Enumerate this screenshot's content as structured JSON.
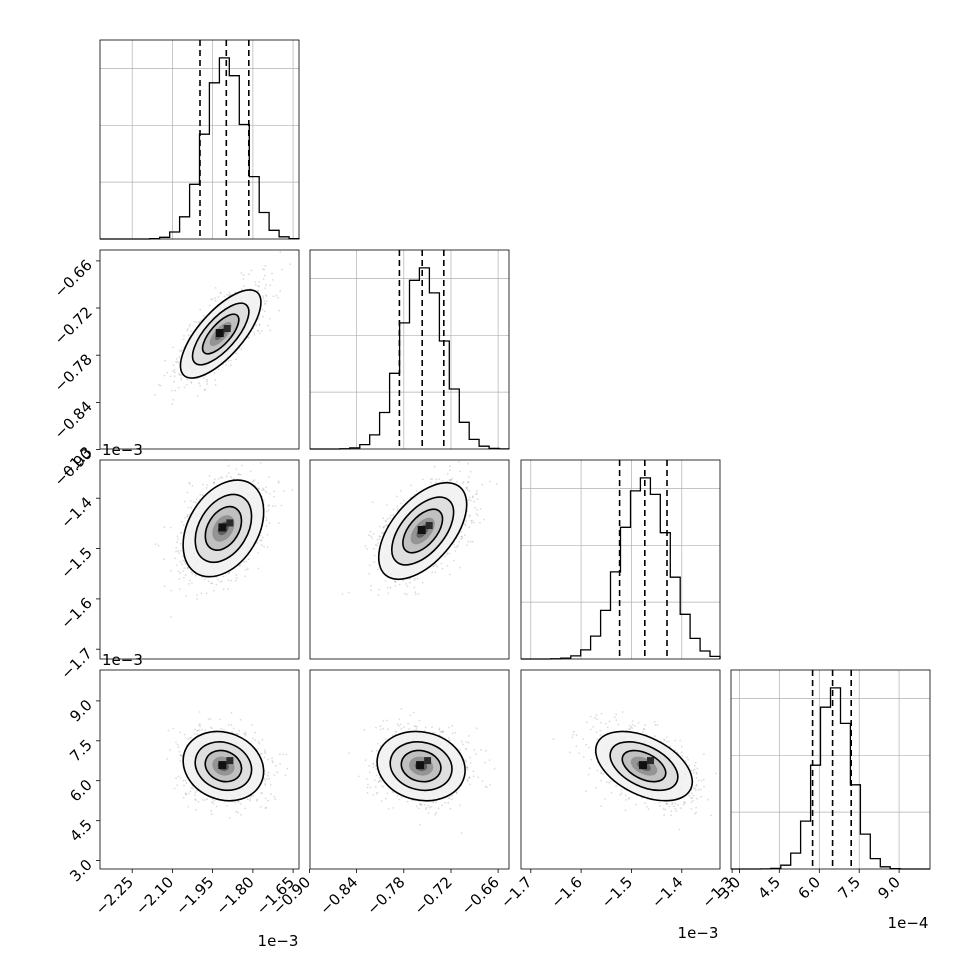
{
  "figure": {
    "background": "#ffffff",
    "grid_color": "#b0b0b0"
  },
  "chart_data": {
    "type": "corner",
    "parameters": [
      {
        "tick_labels": [
          "−2.25",
          "−2.10",
          "−1.95",
          "−1.80",
          "−1.65"
        ],
        "ticks": [
          -2.25,
          -2.1,
          -1.95,
          -1.8,
          -1.65
        ],
        "range": [
          -2.37,
          -1.628
        ],
        "multiplier": "1e−3",
        "histogram": {
          "mean": -1.903,
          "sd": 0.074
        },
        "quantiles": [
          -1.997,
          -1.899,
          -1.815
        ]
      },
      {
        "tick_labels": [
          "−0.90",
          "−0.84",
          "−0.78",
          "−0.72",
          "−0.66"
        ],
        "ticks": [
          -0.9,
          -0.84,
          -0.78,
          -0.72,
          -0.66
        ],
        "range": [
          -0.8993,
          -0.6462
        ],
        "multiplier": "1e−3",
        "histogram": {
          "mean": -0.756,
          "sd": 0.027
        },
        "quantiles": [
          -0.7856,
          -0.7566,
          -0.7291
        ]
      },
      {
        "tick_labels": [
          "−1.7",
          "−1.6",
          "−1.5",
          "−1.4",
          "−1.3"
        ],
        "ticks": [
          -1.7,
          -1.6,
          -1.5,
          -1.4,
          -1.3
        ],
        "range": [
          -1.7194,
          -1.324
        ],
        "multiplier": "1e−3",
        "histogram": {
          "mean": -1.4735,
          "sd": 0.048
        },
        "quantiles": [
          -1.5235,
          -1.4735,
          -1.4294
        ]
      },
      {
        "tick_labels": [
          "3.0",
          "4.5",
          "6.0",
          "7.5",
          "9.0"
        ],
        "ticks": [
          3.0,
          4.5,
          6.0,
          7.5,
          9.0
        ],
        "range": [
          2.685,
          10.16
        ],
        "multiplier": "1e−4",
        "histogram": {
          "mean": 6.55,
          "sd": 0.65
        },
        "quantiles": [
          5.75,
          6.5,
          7.2
        ]
      }
    ],
    "pairs": [
      {
        "x": 0,
        "y": 1,
        "center": [
          -1.92,
          -0.753
        ],
        "scale": [
          0.075,
          0.028
        ],
        "rho": 0.72
      },
      {
        "x": 0,
        "y": 2,
        "center": [
          -1.91,
          -1.46
        ],
        "scale": [
          0.075,
          0.048
        ],
        "rho": 0.35
      },
      {
        "x": 1,
        "y": 2,
        "center": [
          -0.756,
          -1.465
        ],
        "scale": [
          0.028,
          0.048
        ],
        "rho": 0.55
      },
      {
        "x": 0,
        "y": 3,
        "center": [
          -1.91,
          6.55
        ],
        "scale": [
          0.075,
          0.65
        ],
        "rho": -0.15
      },
      {
        "x": 1,
        "y": 3,
        "center": [
          -0.758,
          6.55
        ],
        "scale": [
          0.028,
          0.65
        ],
        "rho": -0.12
      },
      {
        "x": 2,
        "y": 3,
        "center": [
          -1.475,
          6.55
        ],
        "scale": [
          0.048,
          0.65
        ],
        "rho": -0.45
      }
    ],
    "colors": {
      "scatter": "#9a9a9a",
      "line": "#000000"
    }
  }
}
